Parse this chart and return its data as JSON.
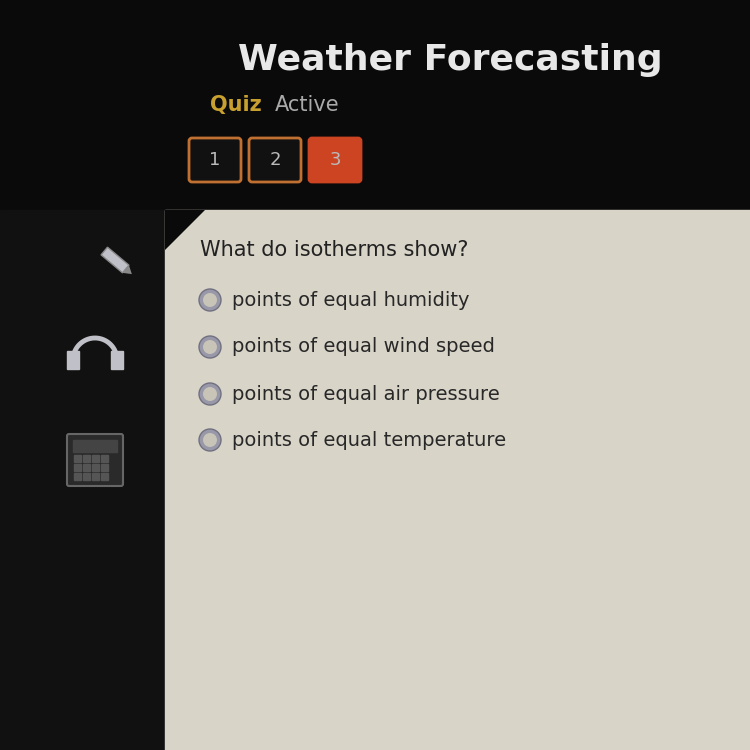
{
  "title": "Weather Forecasting",
  "quiz_label": "Quiz",
  "active_label": "Active",
  "question": "What do isotherms show?",
  "options": [
    "points of equal humidity",
    "points of equal wind speed",
    "points of equal air pressure",
    "points of equal temperature"
  ],
  "bg_dark": "#0a0a0a",
  "bg_panel": "#d8d4c8",
  "title_color": "#e8e8e8",
  "quiz_color": "#c8a030",
  "active_color": "#aaaaaa",
  "question_color": "#222222",
  "option_color": "#282828",
  "btn1_bg": "#111111",
  "btn1_border": "#c07030",
  "btn2_bg": "#111111",
  "btn2_border": "#c07030",
  "btn3_bg": "#cc4422",
  "btn3_border": "#cc4422",
  "btn_text_color": "#bbbbbb",
  "radio_outer_color": "#9898a8",
  "radio_inner_color": "#c8c4b8",
  "sidebar_bg": "#111111",
  "pencil_color": "#c0c0c8",
  "headphone_color": "#c0c0c8",
  "calc_body": "#2a2a2a",
  "calc_screen": "#444444",
  "calc_btn": "#555555"
}
